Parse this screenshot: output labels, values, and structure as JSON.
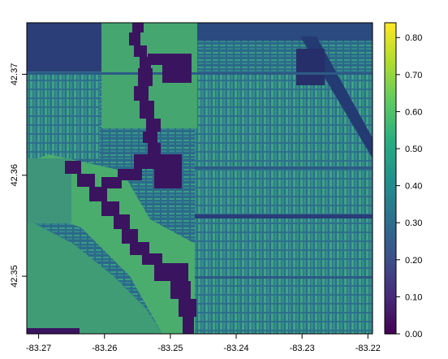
{
  "map": {
    "type": "raster",
    "x_ticks": [
      "-83.27",
      "-83.26",
      "-83.25",
      "-83.24",
      "-83.23",
      "-83.22"
    ],
    "x_tick_values": [
      -83.27,
      -83.26,
      -83.25,
      -83.24,
      -83.23,
      -83.22
    ],
    "y_ticks": [
      "42.35",
      "42.36",
      "42.37"
    ],
    "y_tick_values": [
      42.35,
      42.36,
      42.37
    ],
    "xlim": [
      -83.2718,
      -83.2193
    ],
    "ylim": [
      42.3443,
      42.3751
    ],
    "colorbar": {
      "ticks": [
        "0.00",
        "0.10",
        "0.20",
        "0.30",
        "0.40",
        "0.50",
        "0.60",
        "0.70",
        "0.80"
      ],
      "tick_values": [
        0,
        0.1,
        0.2,
        0.3,
        0.4,
        0.5,
        0.6,
        0.7,
        0.8
      ],
      "range": [
        0,
        0.84
      ],
      "palette": [
        "#440154",
        "#472d7b",
        "#3b528b",
        "#2c728e",
        "#21918c",
        "#28ae80",
        "#5ec962",
        "#addc30",
        "#fde725"
      ]
    },
    "colors": {
      "background_low": "#2f5d87",
      "vegetation": "#33a37c",
      "water": "#3b1460"
    }
  }
}
